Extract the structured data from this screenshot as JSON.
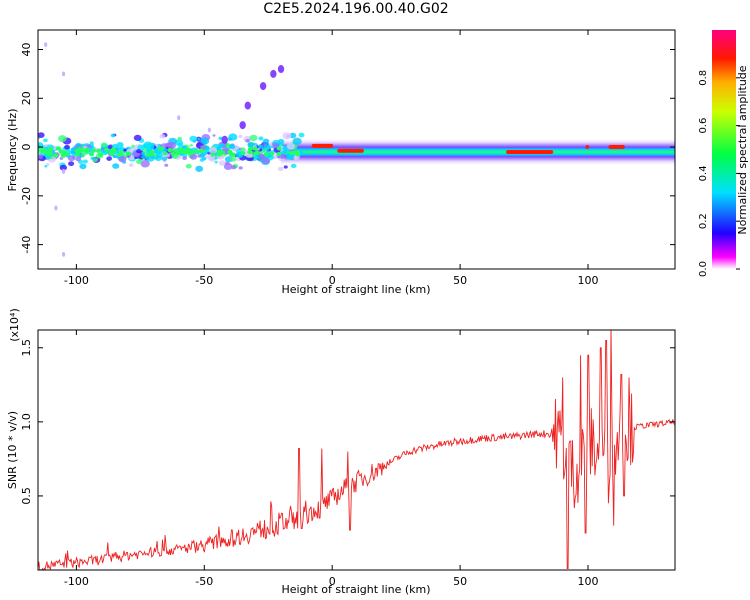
{
  "title": "C2E5.2024.196.00.40.G02",
  "colors": {
    "snr_line": "#ee2222",
    "colormap": [
      "#ffffff",
      "#dcc8ff",
      "#8a5cff",
      "#1a00ff",
      "#00d2ff",
      "#00ff44",
      "#ffe400",
      "#ff1a00",
      "#ff00ff"
    ]
  },
  "chart_data": [
    {
      "type": "heatmap",
      "xlabel": "Height of straight line (km)",
      "ylabel": "Frequency (Hz)",
      "xlim": [
        -115,
        134
      ],
      "ylim": [
        -50,
        48
      ],
      "xticks": [
        -100,
        -50,
        0,
        50,
        100
      ],
      "yticks": [
        -40,
        -20,
        0,
        20,
        40
      ],
      "grid": false,
      "colorbar": {
        "label": "Normalized spectral amplitude",
        "range": [
          0,
          1
        ],
        "ticks": [
          "0.0",
          "0.2",
          "0.4",
          "0.6",
          "0.8"
        ]
      },
      "features": [
        {
          "name": "main band",
          "x_range": [
            -115,
            134
          ],
          "freq_center_hz": -2,
          "noise_band_x": [
            -115,
            -12
          ]
        },
        {
          "name": "rising line",
          "points": [
            [
              -42,
              3
            ],
            [
              -35,
              9
            ],
            [
              -33,
              17
            ],
            [
              -27,
              25
            ],
            [
              -23,
              30
            ],
            [
              -20,
              32
            ]
          ]
        },
        {
          "name": "scattered points",
          "points": [
            [
              -112,
              42
            ],
            [
              -105,
              30
            ],
            [
              -105,
              -10
            ],
            [
              -108,
              -25
            ],
            [
              -105,
              -44
            ],
            [
              -48,
              7
            ],
            [
              -60,
              12
            ]
          ]
        },
        {
          "name": "red segments",
          "segments": [
            [
              -8,
              0,
              0.5
            ],
            [
              2,
              12,
              -1.5
            ],
            [
              68,
              86,
              -2
            ],
            [
              99,
              100,
              0
            ],
            [
              108,
              114,
              0
            ]
          ]
        }
      ]
    },
    {
      "type": "line",
      "xlabel": "Height of straight line (km)",
      "ylabel": "SNR (10 * v/v)",
      "yscale_label": "(x10⁴)",
      "xlim": [
        -115,
        134
      ],
      "ylim": [
        0,
        1.62
      ],
      "xticks": [
        -100,
        -50,
        0,
        50,
        100
      ],
      "yticks": [
        "0.5",
        "1.0",
        "1.5"
      ],
      "grid": false,
      "series": [
        {
          "x": [
            -115,
            -100,
            -90,
            -80,
            -70,
            -60,
            -50,
            -40,
            -30,
            -20,
            -15,
            -10,
            -5,
            0,
            5,
            10,
            20,
            30,
            40,
            50,
            60,
            70,
            80,
            85,
            88,
            90,
            92,
            95,
            100,
            105,
            110,
            115,
            120,
            125,
            130,
            134
          ],
          "y": [
            0.02,
            0.05,
            0.07,
            0.1,
            0.12,
            0.14,
            0.17,
            0.21,
            0.26,
            0.31,
            0.36,
            0.38,
            0.42,
            0.48,
            0.55,
            0.6,
            0.7,
            0.8,
            0.84,
            0.87,
            0.89,
            0.9,
            0.92,
            0.92,
            0.93,
            0.85,
            0.7,
            0.65,
            0.88,
            0.78,
            0.85,
            0.95,
            0.97,
            0.98,
            0.99,
            1.0
          ],
          "spikes": [
            [
              -13,
              0.82
            ],
            [
              -12,
              0.28
            ],
            [
              -4,
              0.82
            ],
            [
              -5,
              0.35
            ],
            [
              6,
              0.8
            ],
            [
              7,
              0.27
            ],
            [
              90,
              1.3
            ],
            [
              92,
              0.01
            ],
            [
              93,
              0.87
            ],
            [
              97,
              1.45
            ],
            [
              99,
              0.25
            ],
            [
              100,
              1.45
            ],
            [
              105,
              1.5
            ],
            [
              107,
              1.55
            ],
            [
              108,
              0.45
            ],
            [
              109,
              1.65
            ],
            [
              110,
              0.3
            ],
            [
              113,
              1.32
            ],
            [
              114,
              0.5
            ],
            [
              116,
              1.3
            ]
          ]
        }
      ]
    }
  ]
}
